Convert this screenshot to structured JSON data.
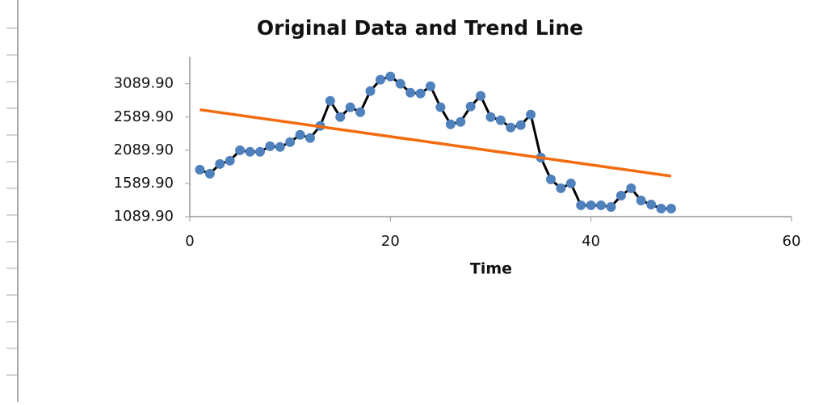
{
  "chart_data": {
    "type": "line",
    "title": "Original Data and Trend Line",
    "x_label": "Time",
    "xlim": [
      0,
      60
    ],
    "xticks": [
      0,
      20,
      40,
      60
    ],
    "ylim": [
      1089.9,
      3500
    ],
    "yticks": [
      {
        "value": 1089.9,
        "label": "1089.90"
      },
      {
        "value": 1589.9,
        "label": "1589.90"
      },
      {
        "value": 2089.9,
        "label": "2089.90"
      },
      {
        "value": 2589.9,
        "label": "2589.90"
      },
      {
        "value": 3089.9,
        "label": "3089.90"
      }
    ],
    "grid": false,
    "series": [
      {
        "color": "#4f81bd",
        "line_color": "#000000",
        "x": [
          1,
          2,
          3,
          4,
          5,
          6,
          7,
          8,
          9,
          10,
          11,
          12,
          13,
          14,
          15,
          16,
          17,
          18,
          19,
          20,
          21,
          22,
          23,
          24,
          25,
          26,
          27,
          28,
          29,
          30,
          31,
          32,
          33,
          34,
          35,
          36,
          37,
          38,
          39,
          40,
          41,
          42,
          43,
          44,
          45,
          46,
          47,
          48
        ],
        "values": [
          1797,
          1736,
          1883,
          1932,
          2090,
          2066,
          2066,
          2151,
          2139,
          2212,
          2322,
          2273,
          2456,
          2834,
          2590,
          2737,
          2663,
          2981,
          3152,
          3200,
          3090,
          2956,
          2944,
          3054,
          2737,
          2481,
          2517,
          2749,
          2908,
          2590,
          2541,
          2432,
          2468,
          2627,
          1980,
          1651,
          1517,
          1590,
          1261,
          1261,
          1261,
          1236,
          1407,
          1517,
          1334,
          1273,
          1212,
          1212
        ]
      },
      {
        "color": "#f26b0f",
        "x": [
          1,
          48
        ],
        "values": [
          2700,
          1700
        ]
      }
    ]
  }
}
